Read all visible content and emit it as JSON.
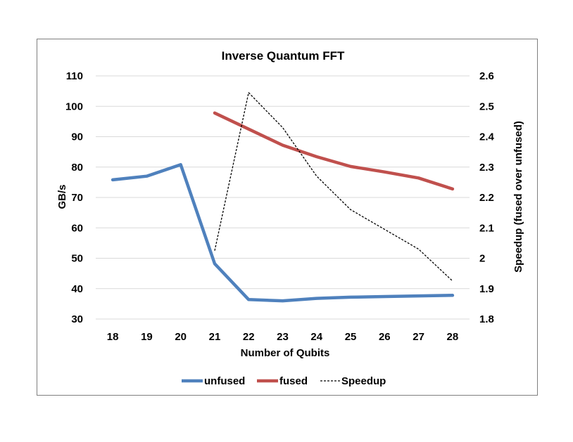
{
  "chart_data": {
    "type": "line",
    "title": "Inverse Quantum FFT",
    "xlabel": "Number of Qubits",
    "ylabel": "GB/s",
    "y2label": "Speedup (fused over unfused)",
    "x": [
      18,
      19,
      20,
      21,
      22,
      23,
      24,
      25,
      26,
      27,
      28
    ],
    "ylim": [
      30,
      110
    ],
    "y2lim": [
      1.8,
      2.6
    ],
    "yticks": [
      30,
      40,
      50,
      60,
      70,
      80,
      90,
      100,
      110
    ],
    "y2ticks": [
      1.8,
      1.9,
      2,
      2.1,
      2.2,
      2.3,
      2.4,
      2.5,
      2.6
    ],
    "grid": "horizontal",
    "legend": "bottom",
    "series": [
      {
        "name": "unfused",
        "axis": "left",
        "color": "#4f81bd",
        "style": "solid",
        "values": [
          75.8,
          77,
          80.8,
          48.2,
          36.4,
          36,
          36.8,
          37.2,
          37.4,
          37.6,
          37.8
        ]
      },
      {
        "name": "fused",
        "axis": "left",
        "color": "#c0504d",
        "style": "solid",
        "values": [
          null,
          null,
          null,
          97.8,
          92.5,
          87.2,
          83.4,
          80.2,
          78.4,
          76.4,
          72.8
        ]
      },
      {
        "name": "Speedup",
        "axis": "right",
        "color": "#000000",
        "style": "dashed",
        "values": [
          null,
          null,
          null,
          2.025,
          2.545,
          2.43,
          2.27,
          2.16,
          2.095,
          2.03,
          1.925
        ]
      }
    ]
  }
}
